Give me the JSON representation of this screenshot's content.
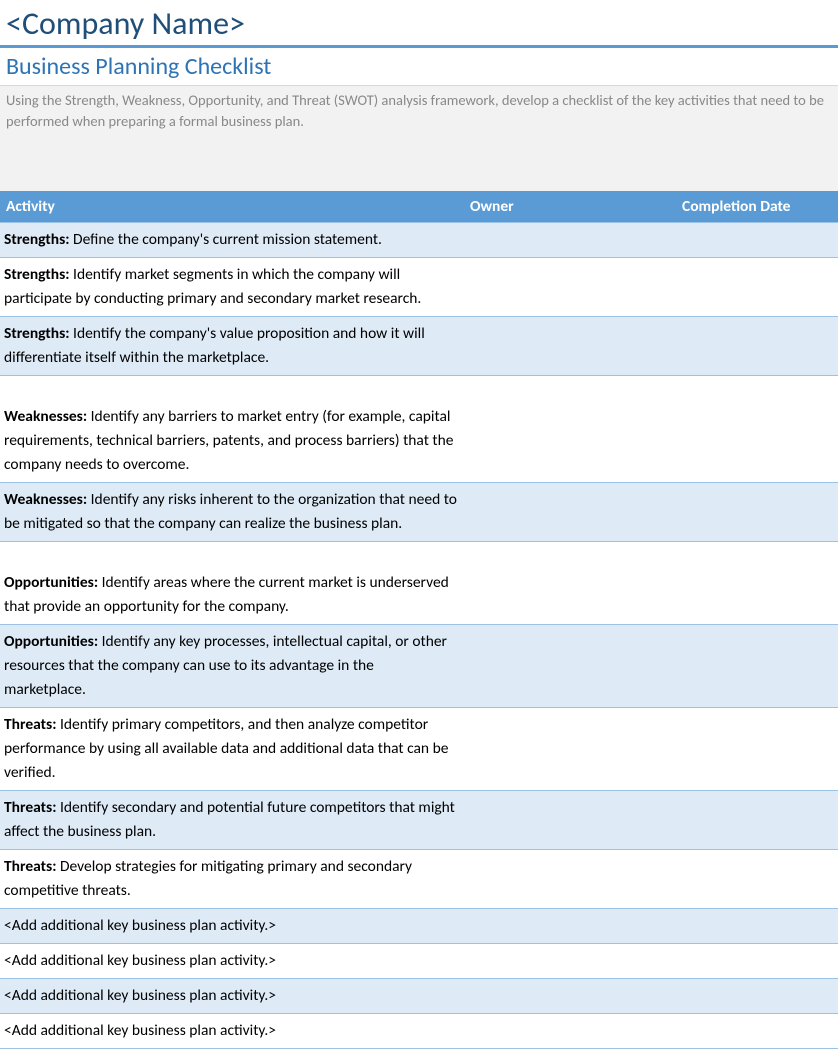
{
  "company_name": "<Company Name>",
  "subtitle": "Business Planning Checklist",
  "description": "Using the Strength, Weakness, Opportunity, and Threat (SWOT) analysis framework, develop a checklist of the key activities that need to be performed when preparing a formal business plan.",
  "columns": {
    "activity": "Activity",
    "owner": "Owner",
    "completion_date": "Completion Date"
  },
  "rows": [
    {
      "band": true,
      "leading_blank": false,
      "category": "Strengths:",
      "text": " Define the company's current mission statement.",
      "owner": "",
      "date": ""
    },
    {
      "band": false,
      "leading_blank": false,
      "category": "Strengths:",
      "text": " Identify market segments in which the company will participate by conducting primary and secondary market research.",
      "owner": "",
      "date": ""
    },
    {
      "band": true,
      "leading_blank": false,
      "category": "Strengths:",
      "text": " Identify the company's value proposition and how it will differentiate itself within the marketplace.",
      "owner": "",
      "date": ""
    },
    {
      "band": false,
      "leading_blank": true,
      "category": "Weaknesses:",
      "text": " Identify any barriers to market entry (for example, capital requirements, technical barriers, patents, and process barriers) that the company needs to overcome.",
      "owner": "",
      "date": ""
    },
    {
      "band": true,
      "leading_blank": false,
      "category": "Weaknesses:",
      "text": " Identify any risks inherent to the organization that need to be mitigated so that the company can realize the business plan.",
      "owner": "",
      "date": ""
    },
    {
      "band": false,
      "leading_blank": true,
      "category": "Opportunities:",
      "text": " Identify areas where the current market is underserved that provide an opportunity for the company.",
      "owner": "",
      "date": ""
    },
    {
      "band": true,
      "leading_blank": false,
      "category": "Opportunities:",
      "text": " Identify any key processes, intellectual capital, or other resources that the company can use to its advantage in the marketplace.",
      "owner": "",
      "date": ""
    },
    {
      "band": false,
      "leading_blank": false,
      "category": "Threats:",
      "text": " Identify primary competitors, and then analyze competitor performance by using all available data and additional data that can be verified.",
      "owner": "",
      "date": ""
    },
    {
      "band": true,
      "leading_blank": false,
      "category": "Threats:",
      "text": " Identify secondary and potential future competitors that might affect the business plan.",
      "owner": "",
      "date": ""
    },
    {
      "band": false,
      "leading_blank": false,
      "category": "Threats:",
      "text": " Develop strategies for mitigating primary and secondary competitive threats.",
      "owner": "",
      "date": ""
    },
    {
      "band": true,
      "leading_blank": false,
      "category": "",
      "text": "<Add additional key business plan activity.>",
      "owner": "",
      "date": ""
    },
    {
      "band": false,
      "leading_blank": false,
      "category": "",
      "text": "<Add additional key business plan activity.>",
      "owner": "",
      "date": ""
    },
    {
      "band": true,
      "leading_blank": false,
      "category": "",
      "text": "<Add additional key business plan activity.>",
      "owner": "",
      "date": ""
    },
    {
      "band": false,
      "leading_blank": false,
      "category": "",
      "text": "<Add additional key business plan activity.>",
      "owner": "",
      "date": ""
    }
  ],
  "colors": {
    "accent": "#5b9bd5",
    "title": "#1f4e79",
    "subtitle": "#2e74b5",
    "band": "#deeaf6",
    "border": "#9cc2e5",
    "desc_bg": "#f2f2f2",
    "desc_text": "#888888"
  }
}
